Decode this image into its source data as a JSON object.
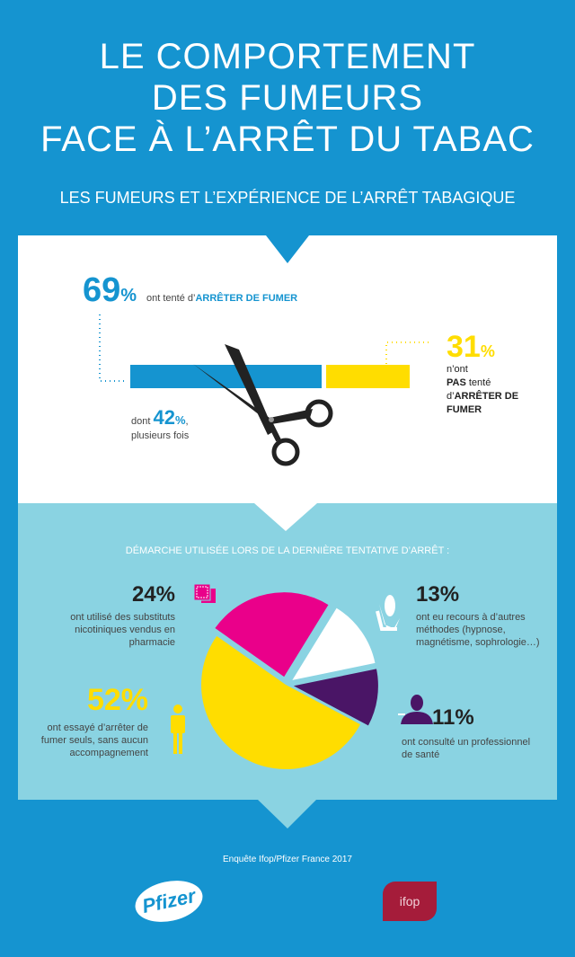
{
  "title": {
    "lines": [
      "LE COMPORTEMENT",
      "DES FUMEURS",
      "FACE À L’ARRÊT DU TABAC"
    ]
  },
  "subtitle": "LES FUMEURS ET L’EXPÉRIENCE DE L’ARRÊT TABAGIQUE",
  "section1": {
    "tried": {
      "value": "69",
      "pct": "%",
      "text": "ont tenté d’",
      "emph": "ARRÊTER DE FUMER"
    },
    "several": {
      "prefix": "dont ",
      "value": "42",
      "pct": "%",
      "suffix": ",",
      "line2": "plusieurs fois"
    },
    "not_tried": {
      "value": "31",
      "pct": "%",
      "line1": "n’ont",
      "emph1": "PAS",
      "line2": " tenté",
      "line3": "d’",
      "emph2": "ARRÊTER DE",
      "emph3": "FUMER"
    },
    "colors": {
      "tried": "#1594d0",
      "not_tried": "#ffdd00"
    }
  },
  "section2": {
    "heading": "DÉMARCHE UTILISÉE LORS DE LA DERNIÈRE TENTATIVE D’ARRÊT :"
  },
  "chart_data": {
    "type": "pie",
    "title": "DÉMARCHE UTILISÉE LORS DE LA DERNIÈRE TENTATIVE D’ARRÊT :",
    "slices": [
      {
        "value": 52,
        "label": "52%",
        "text": "ont essayé d’arrêter de fumer seuls, sans aucun accompagnement",
        "color": "#ffdd00",
        "icon": "person-icon"
      },
      {
        "value": 24,
        "label": "24%",
        "text": "ont utilisé des substituts nicotiniques vendus en pharmacie",
        "color": "#ea008a",
        "icon": "patch-icon"
      },
      {
        "value": 13,
        "label": "13%",
        "text": "ont eu recours à d’autres méthodes (hypnose, magnétisme, sophrologie…)",
        "color": "#ffffff",
        "icon": "reflexology-hands-icon"
      },
      {
        "value": 11,
        "label": "11%",
        "text": "ont consulté un professionnel de santé",
        "color": "#4a1566",
        "icon": "doctor-icon"
      }
    ]
  },
  "footer": {
    "source": "Enquête Ifop/Pfizer France 2017",
    "logos": [
      "Pfizer",
      "ifop"
    ]
  }
}
